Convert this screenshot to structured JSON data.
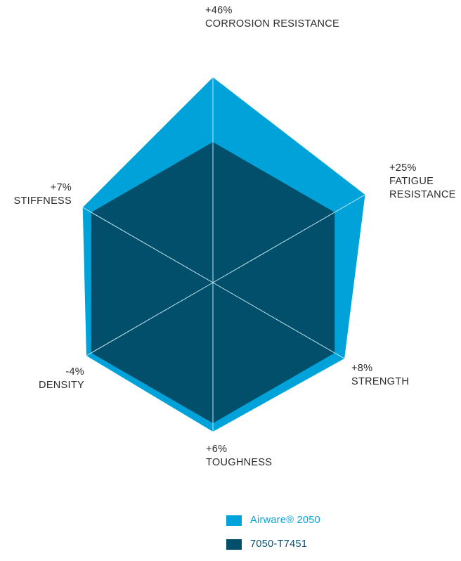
{
  "chart_data": {
    "type": "radar",
    "axes": [
      {
        "value_label": "+46%",
        "name_lines": [
          "CORROSION RESISTANCE"
        ]
      },
      {
        "value_label": "+25%",
        "name_lines": [
          "FATIGUE",
          "RESISTANCE"
        ]
      },
      {
        "value_label": "+8%",
        "name_lines": [
          "STRENGTH"
        ]
      },
      {
        "value_label": "+6%",
        "name_lines": [
          "TOUGHNESS"
        ]
      },
      {
        "value_label": "-4%",
        "name_lines": [
          "DENSITY"
        ]
      },
      {
        "value_label": "+7%",
        "name_lines": [
          "STIFFNESS"
        ]
      }
    ],
    "series": [
      {
        "name": "Airware® 2050",
        "color": "#00a3d9",
        "values": [
          146,
          125,
          108,
          106,
          104,
          107
        ]
      },
      {
        "name": "7050-T7451",
        "color": "#024f6b",
        "values": [
          100,
          100,
          100,
          100,
          100,
          100
        ]
      }
    ],
    "axis_line_color": "#bfe4f2",
    "legend_position": "bottom"
  }
}
